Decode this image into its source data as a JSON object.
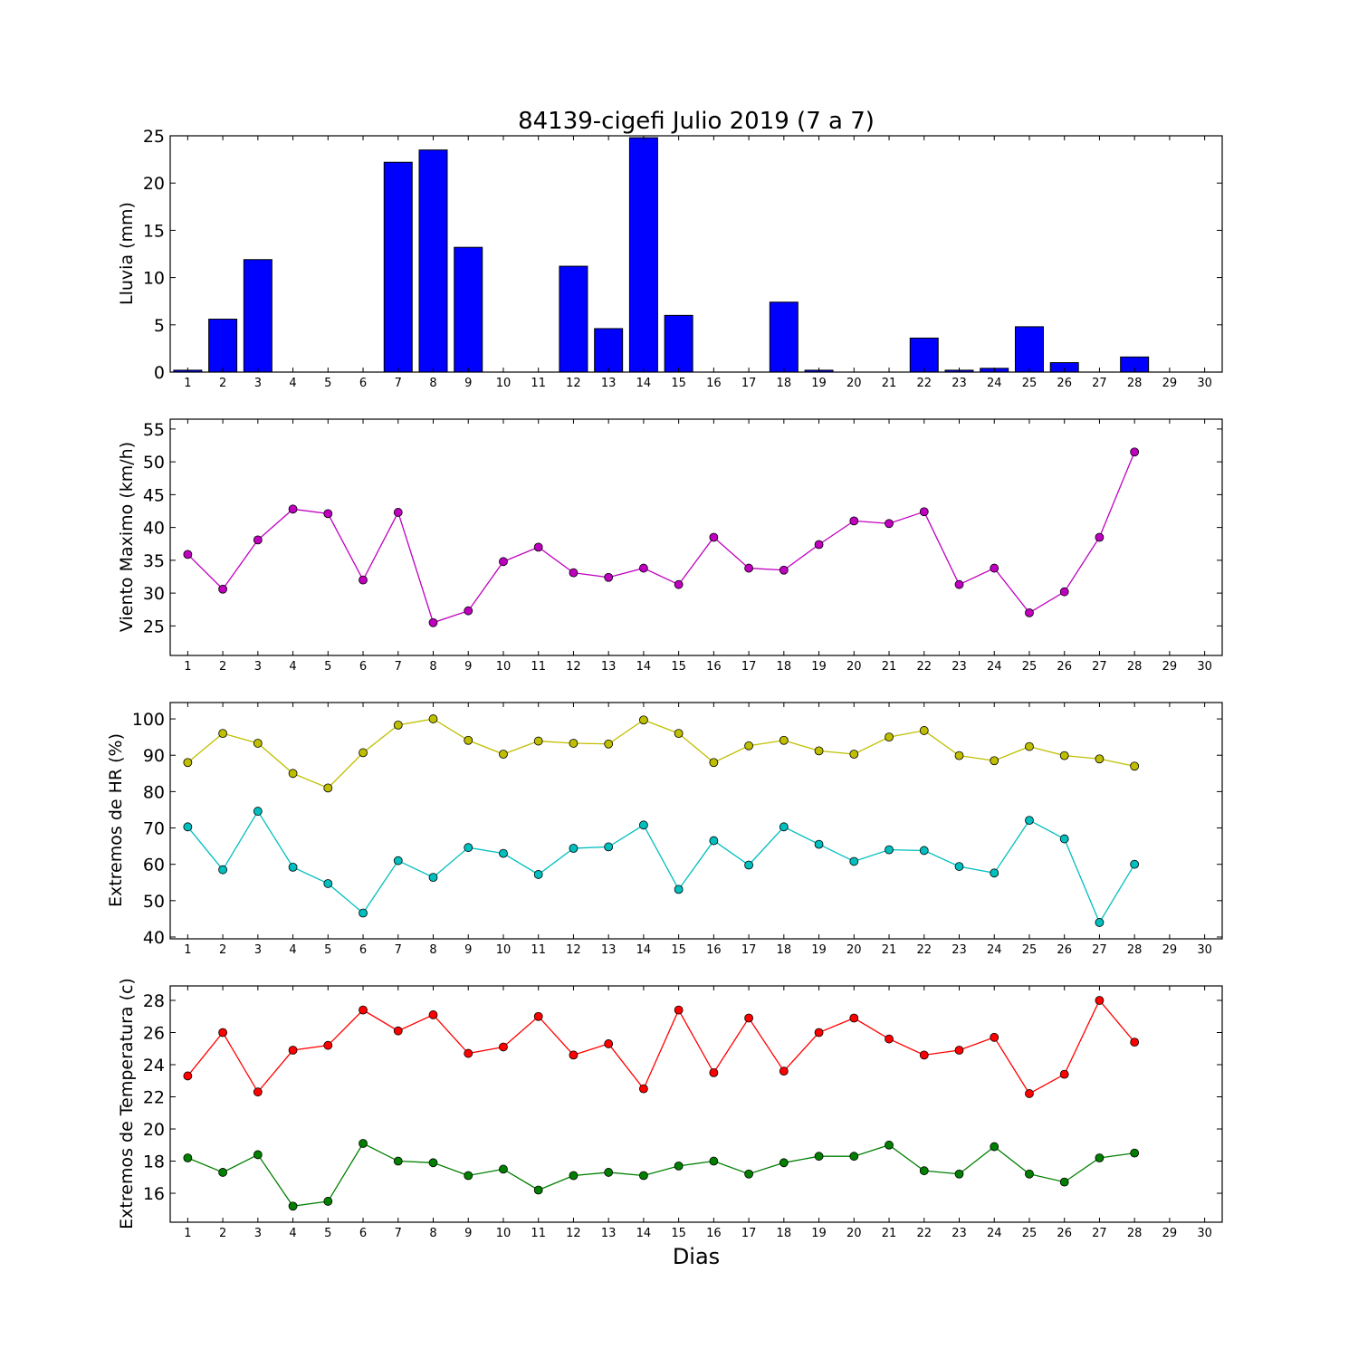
{
  "chart_data": [
    {
      "type": "bar",
      "title": "84139-cigefi Julio 2019  (7 a 7)",
      "xlabel": "",
      "ylabel": "Lluvia (mm)",
      "x": [
        1,
        2,
        3,
        4,
        5,
        6,
        7,
        8,
        9,
        10,
        11,
        12,
        13,
        14,
        15,
        16,
        17,
        18,
        19,
        20,
        21,
        22,
        23,
        24,
        25,
        26,
        27,
        28,
        29,
        30
      ],
      "xlim": [
        0.5,
        30.5
      ],
      "ylim": [
        0,
        25
      ],
      "yticks": [
        0,
        5,
        10,
        15,
        20,
        25
      ],
      "grid": false,
      "series": [
        {
          "color": "#0000ff",
          "values": [
            0.2,
            5.6,
            11.9,
            0,
            0,
            0,
            22.2,
            23.5,
            13.2,
            0,
            0,
            11.2,
            4.6,
            24.8,
            6.0,
            0,
            0,
            7.4,
            0.2,
            0,
            0,
            3.6,
            0.2,
            0.4,
            4.8,
            1.0,
            0,
            1.6,
            0,
            0
          ]
        }
      ]
    },
    {
      "type": "line",
      "title": "",
      "xlabel": "",
      "ylabel": "Viento Maximo (km/h)",
      "x": [
        1,
        2,
        3,
        4,
        5,
        6,
        7,
        8,
        9,
        10,
        11,
        12,
        13,
        14,
        15,
        16,
        17,
        18,
        19,
        20,
        21,
        22,
        23,
        24,
        25,
        26,
        27,
        28
      ],
      "xticks": [
        1,
        2,
        3,
        4,
        5,
        6,
        7,
        8,
        9,
        10,
        11,
        12,
        13,
        14,
        15,
        16,
        17,
        18,
        19,
        20,
        21,
        22,
        23,
        24,
        25,
        26,
        27,
        28,
        29,
        30
      ],
      "xlim": [
        0.5,
        30.5
      ],
      "ylim": [
        20.5,
        56.5
      ],
      "yticks": [
        25,
        30,
        35,
        40,
        45,
        50,
        55
      ],
      "grid": false,
      "series": [
        {
          "color": "#bf00bf",
          "values": [
            35.9,
            30.6,
            38.1,
            42.8,
            42.1,
            32.0,
            42.3,
            25.5,
            27.3,
            34.8,
            37.0,
            33.1,
            32.4,
            33.8,
            31.3,
            38.5,
            33.8,
            33.5,
            37.4,
            41.0,
            40.6,
            42.4,
            31.3,
            33.8,
            27.0,
            30.2,
            38.5,
            51.5
          ]
        }
      ]
    },
    {
      "type": "line",
      "title": "",
      "xlabel": "",
      "ylabel": "Extremos de HR (%)",
      "x": [
        1,
        2,
        3,
        4,
        5,
        6,
        7,
        8,
        9,
        10,
        11,
        12,
        13,
        14,
        15,
        16,
        17,
        18,
        19,
        20,
        21,
        22,
        23,
        24,
        25,
        26,
        27,
        28
      ],
      "xticks": [
        1,
        2,
        3,
        4,
        5,
        6,
        7,
        8,
        9,
        10,
        11,
        12,
        13,
        14,
        15,
        16,
        17,
        18,
        19,
        20,
        21,
        22,
        23,
        24,
        25,
        26,
        27,
        28,
        29,
        30
      ],
      "xlim": [
        0.5,
        30.5
      ],
      "ylim": [
        39.5,
        104.5
      ],
      "yticks": [
        40,
        50,
        60,
        70,
        80,
        90,
        100
      ],
      "grid": false,
      "series": [
        {
          "color": "#bfbf00",
          "values": [
            88.0,
            96.0,
            93.3,
            85.0,
            81.0,
            90.7,
            98.3,
            100.0,
            94.1,
            90.3,
            93.9,
            93.3,
            93.1,
            99.7,
            96.0,
            88.0,
            92.6,
            94.1,
            91.2,
            90.3,
            95.0,
            96.8,
            89.9,
            88.5,
            92.4,
            89.9,
            89.0,
            87.0
          ]
        },
        {
          "color": "#00bfbf",
          "values": [
            70.3,
            58.5,
            74.6,
            59.2,
            54.7,
            46.6,
            61.0,
            56.4,
            64.6,
            63.0,
            57.2,
            64.4,
            64.8,
            70.8,
            53.1,
            66.5,
            59.8,
            70.3,
            65.5,
            60.8,
            64.0,
            63.8,
            59.4,
            57.6,
            72.1,
            67.0,
            44.0,
            60.0
          ]
        }
      ]
    },
    {
      "type": "line",
      "title": "",
      "xlabel": "Dias",
      "ylabel": "Extremos de Temperatura (c)",
      "x": [
        1,
        2,
        3,
        4,
        5,
        6,
        7,
        8,
        9,
        10,
        11,
        12,
        13,
        14,
        15,
        16,
        17,
        18,
        19,
        20,
        21,
        22,
        23,
        24,
        25,
        26,
        27,
        28
      ],
      "xticks": [
        1,
        2,
        3,
        4,
        5,
        6,
        7,
        8,
        9,
        10,
        11,
        12,
        13,
        14,
        15,
        16,
        17,
        18,
        19,
        20,
        21,
        22,
        23,
        24,
        25,
        26,
        27,
        28,
        29,
        30
      ],
      "xlim": [
        0.5,
        30.5
      ],
      "ylim": [
        14.2,
        28.9
      ],
      "yticks": [
        16,
        18,
        20,
        22,
        24,
        26,
        28
      ],
      "grid": false,
      "series": [
        {
          "color": "#ff0000",
          "values": [
            23.3,
            26.0,
            22.3,
            24.9,
            25.2,
            27.4,
            26.1,
            27.1,
            24.7,
            25.1,
            27.0,
            24.6,
            25.3,
            22.5,
            27.4,
            23.5,
            26.9,
            23.6,
            26.0,
            26.9,
            25.6,
            24.6,
            24.9,
            25.7,
            22.2,
            23.4,
            28.0,
            25.4
          ]
        },
        {
          "color": "#007f00",
          "values": [
            18.2,
            17.3,
            18.4,
            15.2,
            15.5,
            19.1,
            18.0,
            17.9,
            17.1,
            17.5,
            16.2,
            17.1,
            17.3,
            17.1,
            17.7,
            18.0,
            17.2,
            17.9,
            18.3,
            18.3,
            19.0,
            17.4,
            17.2,
            18.9,
            17.2,
            16.7,
            18.2,
            18.5
          ]
        }
      ]
    }
  ]
}
